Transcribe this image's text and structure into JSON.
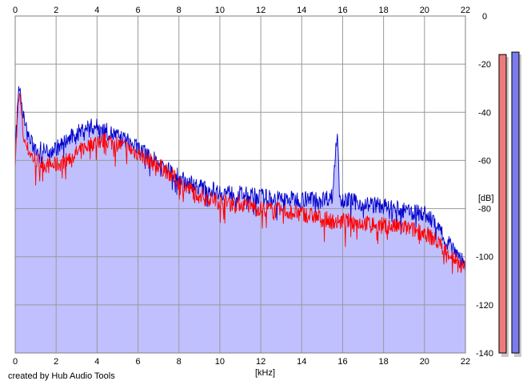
{
  "credit": "created by Hub Audio Tools",
  "chart_data": {
    "type": "line",
    "xlabel": "[kHz]",
    "ylabel": "[dB]",
    "xlim": [
      0,
      22
    ],
    "ylim": [
      -140,
      0
    ],
    "x_ticks": [
      "0",
      "2",
      "4",
      "6",
      "8",
      "10",
      "12",
      "14",
      "16",
      "18",
      "20",
      "22"
    ],
    "y_ticks": [
      "0",
      "-20",
      "-40",
      "-60",
      "-80",
      "-100",
      "-120",
      "-140"
    ],
    "grid": true,
    "colors": {
      "fill": "#c0c0ff",
      "red": "#ff0000",
      "blue": "#0000cc",
      "grid": "#999999",
      "meter_red": "#ee7b7b",
      "meter_blue": "#7b7bee"
    },
    "series": [
      {
        "color": "#ff0000",
        "x": [
          0,
          0.2,
          0.4,
          0.6,
          0.8,
          1.0,
          1.5,
          2.0,
          2.5,
          3.0,
          3.5,
          4.0,
          4.5,
          5.0,
          5.5,
          6.0,
          6.5,
          7.0,
          7.5,
          8.0,
          8.5,
          9.0,
          9.5,
          10.0,
          11.0,
          12.0,
          13.0,
          14.0,
          15.0,
          15.8,
          16.0,
          17.0,
          18.0,
          19.0,
          20.0,
          20.5,
          21.0,
          21.5,
          21.8,
          22.0
        ],
        "y": [
          -60,
          -30,
          -50,
          -55,
          -58,
          -60,
          -62,
          -62,
          -60,
          -57,
          -54,
          -52,
          -52,
          -53,
          -55,
          -57,
          -60,
          -62,
          -65,
          -69,
          -72,
          -74,
          -76,
          -77,
          -78,
          -80,
          -81,
          -82,
          -84,
          -86,
          -85,
          -86,
          -87,
          -88,
          -90,
          -93,
          -97,
          -101,
          -104,
          -105
        ]
      },
      {
        "color": "#0000cc",
        "x": [
          0,
          0.2,
          0.4,
          0.6,
          0.8,
          1.0,
          1.5,
          2.0,
          2.5,
          3.0,
          3.5,
          4.0,
          4.5,
          5.0,
          5.5,
          6.0,
          6.5,
          7.0,
          7.5,
          8.0,
          8.5,
          9.0,
          9.5,
          10.0,
          11.0,
          12.0,
          13.0,
          14.0,
          15.0,
          15.5,
          15.75,
          15.85,
          16.0,
          17.0,
          18.0,
          19.0,
          20.0,
          20.5,
          21.0,
          21.5,
          21.8,
          22.0
        ],
        "y": [
          -55,
          -27,
          -42,
          -49,
          -53,
          -55,
          -56,
          -55,
          -52,
          -49,
          -46,
          -46,
          -48,
          -50,
          -52,
          -55,
          -58,
          -61,
          -64,
          -67,
          -69,
          -71,
          -72,
          -73,
          -74,
          -75,
          -76,
          -76,
          -76,
          -75,
          -45,
          -75,
          -76,
          -78,
          -79,
          -81,
          -82,
          -86,
          -92,
          -97,
          -101,
          -103
        ]
      }
    ]
  },
  "meters": [
    {
      "color": "#ee7b7b",
      "level_db": -16
    },
    {
      "color": "#7b7bee",
      "level_db": -15
    }
  ]
}
